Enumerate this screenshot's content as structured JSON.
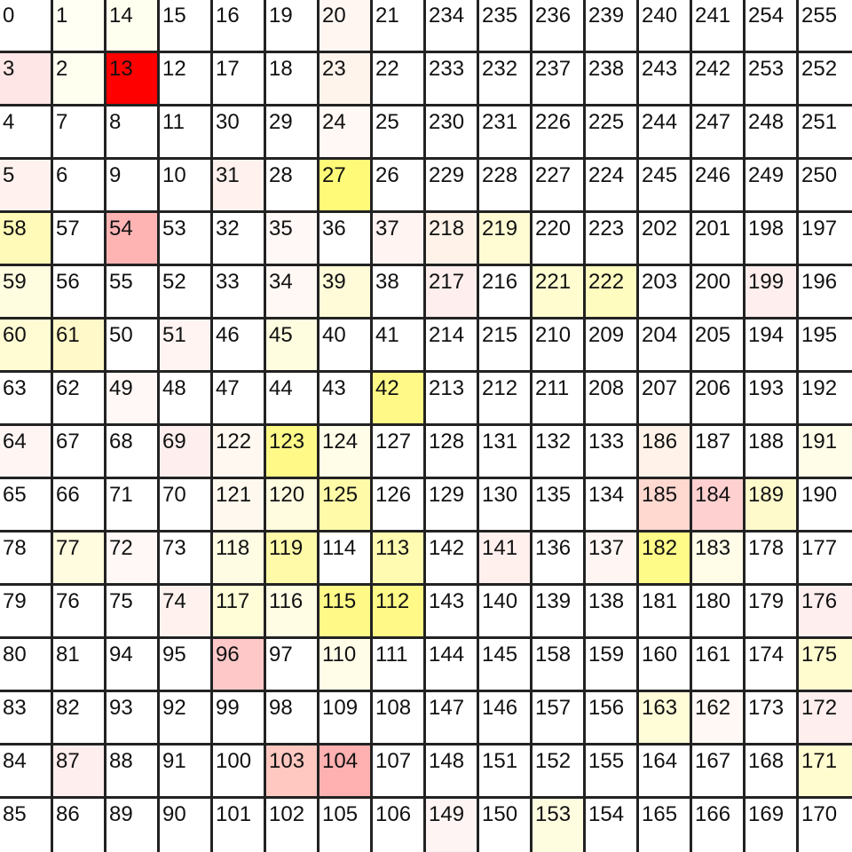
{
  "grid": {
    "rows": [
      [
        "0",
        "1",
        "14",
        "15",
        "16",
        "19",
        "20",
        "21",
        "234",
        "235",
        "236",
        "239",
        "240",
        "241",
        "254",
        "255"
      ],
      [
        "3",
        "2",
        "13",
        "12",
        "17",
        "18",
        "23",
        "22",
        "233",
        "232",
        "237",
        "238",
        "243",
        "242",
        "253",
        "252"
      ],
      [
        "4",
        "7",
        "8",
        "11",
        "30",
        "29",
        "24",
        "25",
        "230",
        "231",
        "226",
        "225",
        "244",
        "247",
        "248",
        "251"
      ],
      [
        "5",
        "6",
        "9",
        "10",
        "31",
        "28",
        "27",
        "26",
        "229",
        "228",
        "227",
        "224",
        "245",
        "246",
        "249",
        "250"
      ],
      [
        "58",
        "57",
        "54",
        "53",
        "32",
        "35",
        "36",
        "37",
        "218",
        "219",
        "220",
        "223",
        "202",
        "201",
        "198",
        "197"
      ],
      [
        "59",
        "56",
        "55",
        "52",
        "33",
        "34",
        "39",
        "38",
        "217",
        "216",
        "221",
        "222",
        "203",
        "200",
        "199",
        "196"
      ],
      [
        "60",
        "61",
        "50",
        "51",
        "46",
        "45",
        "40",
        "41",
        "214",
        "215",
        "210",
        "209",
        "204",
        "205",
        "194",
        "195"
      ],
      [
        "63",
        "62",
        "49",
        "48",
        "47",
        "44",
        "43",
        "42",
        "213",
        "212",
        "211",
        "208",
        "207",
        "206",
        "193",
        "192"
      ],
      [
        "64",
        "67",
        "68",
        "69",
        "122",
        "123",
        "124",
        "127",
        "128",
        "131",
        "132",
        "133",
        "186",
        "187",
        "188",
        "191"
      ],
      [
        "65",
        "66",
        "71",
        "70",
        "121",
        "120",
        "125",
        "126",
        "129",
        "130",
        "135",
        "134",
        "185",
        "184",
        "189",
        "190"
      ],
      [
        "78",
        "77",
        "72",
        "73",
        "118",
        "119",
        "114",
        "113",
        "142",
        "141",
        "136",
        "137",
        "182",
        "183",
        "178",
        "177"
      ],
      [
        "79",
        "76",
        "75",
        "74",
        "117",
        "116",
        "115",
        "112",
        "143",
        "140",
        "139",
        "138",
        "181",
        "180",
        "179",
        "176"
      ],
      [
        "80",
        "81",
        "94",
        "95",
        "96",
        "97",
        "110",
        "111",
        "144",
        "145",
        "158",
        "159",
        "160",
        "161",
        "174",
        "175"
      ],
      [
        "83",
        "82",
        "93",
        "92",
        "99",
        "98",
        "109",
        "108",
        "147",
        "146",
        "157",
        "156",
        "163",
        "162",
        "173",
        "172"
      ],
      [
        "84",
        "87",
        "88",
        "91",
        "100",
        "103",
        "104",
        "107",
        "148",
        "151",
        "152",
        "155",
        "164",
        "167",
        "168",
        "171"
      ],
      [
        "85",
        "86",
        "89",
        "90",
        "101",
        "102",
        "105",
        "106",
        "149",
        "150",
        "153",
        "154",
        "165",
        "166",
        "169",
        "170"
      ]
    ],
    "colors": [
      [
        "#ffffff",
        "#fffff4",
        "#fffff0",
        "#ffffff",
        "#ffffff",
        "#ffffff",
        "#fff6f2",
        "#ffffff",
        "#ffffff",
        "#ffffff",
        "#ffffff",
        "#ffffff",
        "#ffffff",
        "#ffffff",
        "#ffffff",
        "#ffffff"
      ],
      [
        "#ffe6e6",
        "#fffff0",
        "#ff0000",
        "#ffffff",
        "#ffffff",
        "#ffffff",
        "#fff4ec",
        "#ffffff",
        "#ffffff",
        "#ffffff",
        "#ffffff",
        "#ffffff",
        "#ffffff",
        "#ffffff",
        "#ffffff",
        "#ffffff"
      ],
      [
        "#ffffff",
        "#ffffff",
        "#ffffff",
        "#ffffff",
        "#ffffff",
        "#ffffff",
        "#fff8f4",
        "#ffffff",
        "#ffffff",
        "#ffffff",
        "#ffffff",
        "#ffffff",
        "#ffffff",
        "#ffffff",
        "#ffffff",
        "#ffffff"
      ],
      [
        "#fff2ee",
        "#ffffff",
        "#ffffff",
        "#ffffff",
        "#fff1ee",
        "#ffffff",
        "#fffb78",
        "#ffffff",
        "#ffffff",
        "#ffffff",
        "#ffffff",
        "#ffffff",
        "#ffffff",
        "#ffffff",
        "#ffffff",
        "#ffffff"
      ],
      [
        "#fffab8",
        "#ffffff",
        "#ffb4b4",
        "#ffffff",
        "#ffffff",
        "#fff8f6",
        "#ffffff",
        "#fff4f2",
        "#fff2e8",
        "#fffcd4",
        "#ffffff",
        "#ffffff",
        "#ffffff",
        "#ffffff",
        "#ffffff",
        "#ffffff"
      ],
      [
        "#fffde0",
        "#ffffff",
        "#ffffff",
        "#ffffff",
        "#ffffff",
        "#fff8f4",
        "#fffbd8",
        "#ffffff",
        "#ffeeee",
        "#ffffff",
        "#fffcd0",
        "#fffcc0",
        "#ffffff",
        "#ffffff",
        "#ffeeee",
        "#ffffff"
      ],
      [
        "#fffcd4",
        "#fff8c8",
        "#ffffff",
        "#fff4f2",
        "#ffffff",
        "#fffde0",
        "#ffffff",
        "#ffffff",
        "#ffffff",
        "#ffffff",
        "#ffffff",
        "#ffffff",
        "#ffffff",
        "#ffffff",
        "#ffffff",
        "#ffffff"
      ],
      [
        "#ffffff",
        "#ffffff",
        "#fff8f6",
        "#ffffff",
        "#ffffff",
        "#ffffff",
        "#ffffff",
        "#fffa88",
        "#ffffff",
        "#ffffff",
        "#ffffff",
        "#ffffff",
        "#ffffff",
        "#ffffff",
        "#ffffff",
        "#ffffff"
      ],
      [
        "#fff6f4",
        "#ffffff",
        "#ffffff",
        "#ffeeee",
        "#fff8f0",
        "#fffa88",
        "#fffde8",
        "#ffffff",
        "#ffffff",
        "#ffffff",
        "#ffffff",
        "#ffffff",
        "#fff2e8",
        "#ffffff",
        "#ffffff",
        "#fffce8"
      ],
      [
        "#ffffff",
        "#ffffff",
        "#ffffff",
        "#ffffff",
        "#fff8ee",
        "#fffce0",
        "#fffaa8",
        "#ffffff",
        "#ffffff",
        "#ffffff",
        "#ffffff",
        "#ffffff",
        "#ffd8d0",
        "#ffd0d0",
        "#fffacc",
        "#ffffff"
      ],
      [
        "#ffffff",
        "#fffce0",
        "#fff8f6",
        "#ffffff",
        "#fffce4",
        "#fffaa8",
        "#ffffff",
        "#fffbb0",
        "#ffffff",
        "#fff0ee",
        "#ffffff",
        "#fff6f4",
        "#fffb88",
        "#fffce8",
        "#ffffff",
        "#ffffff"
      ],
      [
        "#ffffff",
        "#ffffff",
        "#ffffff",
        "#fff2ee",
        "#fffcd8",
        "#fffde4",
        "#fffa88",
        "#fffa88",
        "#ffffff",
        "#ffffff",
        "#ffffff",
        "#ffffff",
        "#ffffff",
        "#ffffff",
        "#ffffff",
        "#ffeeee"
      ],
      [
        "#ffffff",
        "#ffffff",
        "#ffffff",
        "#ffffff",
        "#ffc8c8",
        "#ffffff",
        "#fffde8",
        "#ffffff",
        "#ffffff",
        "#ffffff",
        "#ffffff",
        "#ffffff",
        "#ffffff",
        "#ffffff",
        "#ffffff",
        "#fffcd0"
      ],
      [
        "#ffffff",
        "#ffffff",
        "#ffffff",
        "#ffffff",
        "#ffffff",
        "#ffffff",
        "#ffffff",
        "#ffffff",
        "#ffffff",
        "#ffffff",
        "#ffffff",
        "#ffffff",
        "#fffcd8",
        "#fff8f4",
        "#ffffff",
        "#ffeeee"
      ],
      [
        "#ffffff",
        "#ffeeee",
        "#ffffff",
        "#ffffff",
        "#ffffff",
        "#ffc8c0",
        "#ffb0b0",
        "#ffffff",
        "#ffffff",
        "#ffffff",
        "#ffffff",
        "#ffffff",
        "#ffffff",
        "#ffffff",
        "#ffffff",
        "#fffcd0"
      ],
      [
        "#ffffff",
        "#ffffff",
        "#ffffff",
        "#ffffff",
        "#ffffff",
        "#ffffff",
        "#ffffff",
        "#ffffff",
        "#fff4f4",
        "#ffffff",
        "#fffde0",
        "#ffffff",
        "#ffffff",
        "#ffffff",
        "#ffffff",
        "#ffffff"
      ]
    ]
  }
}
